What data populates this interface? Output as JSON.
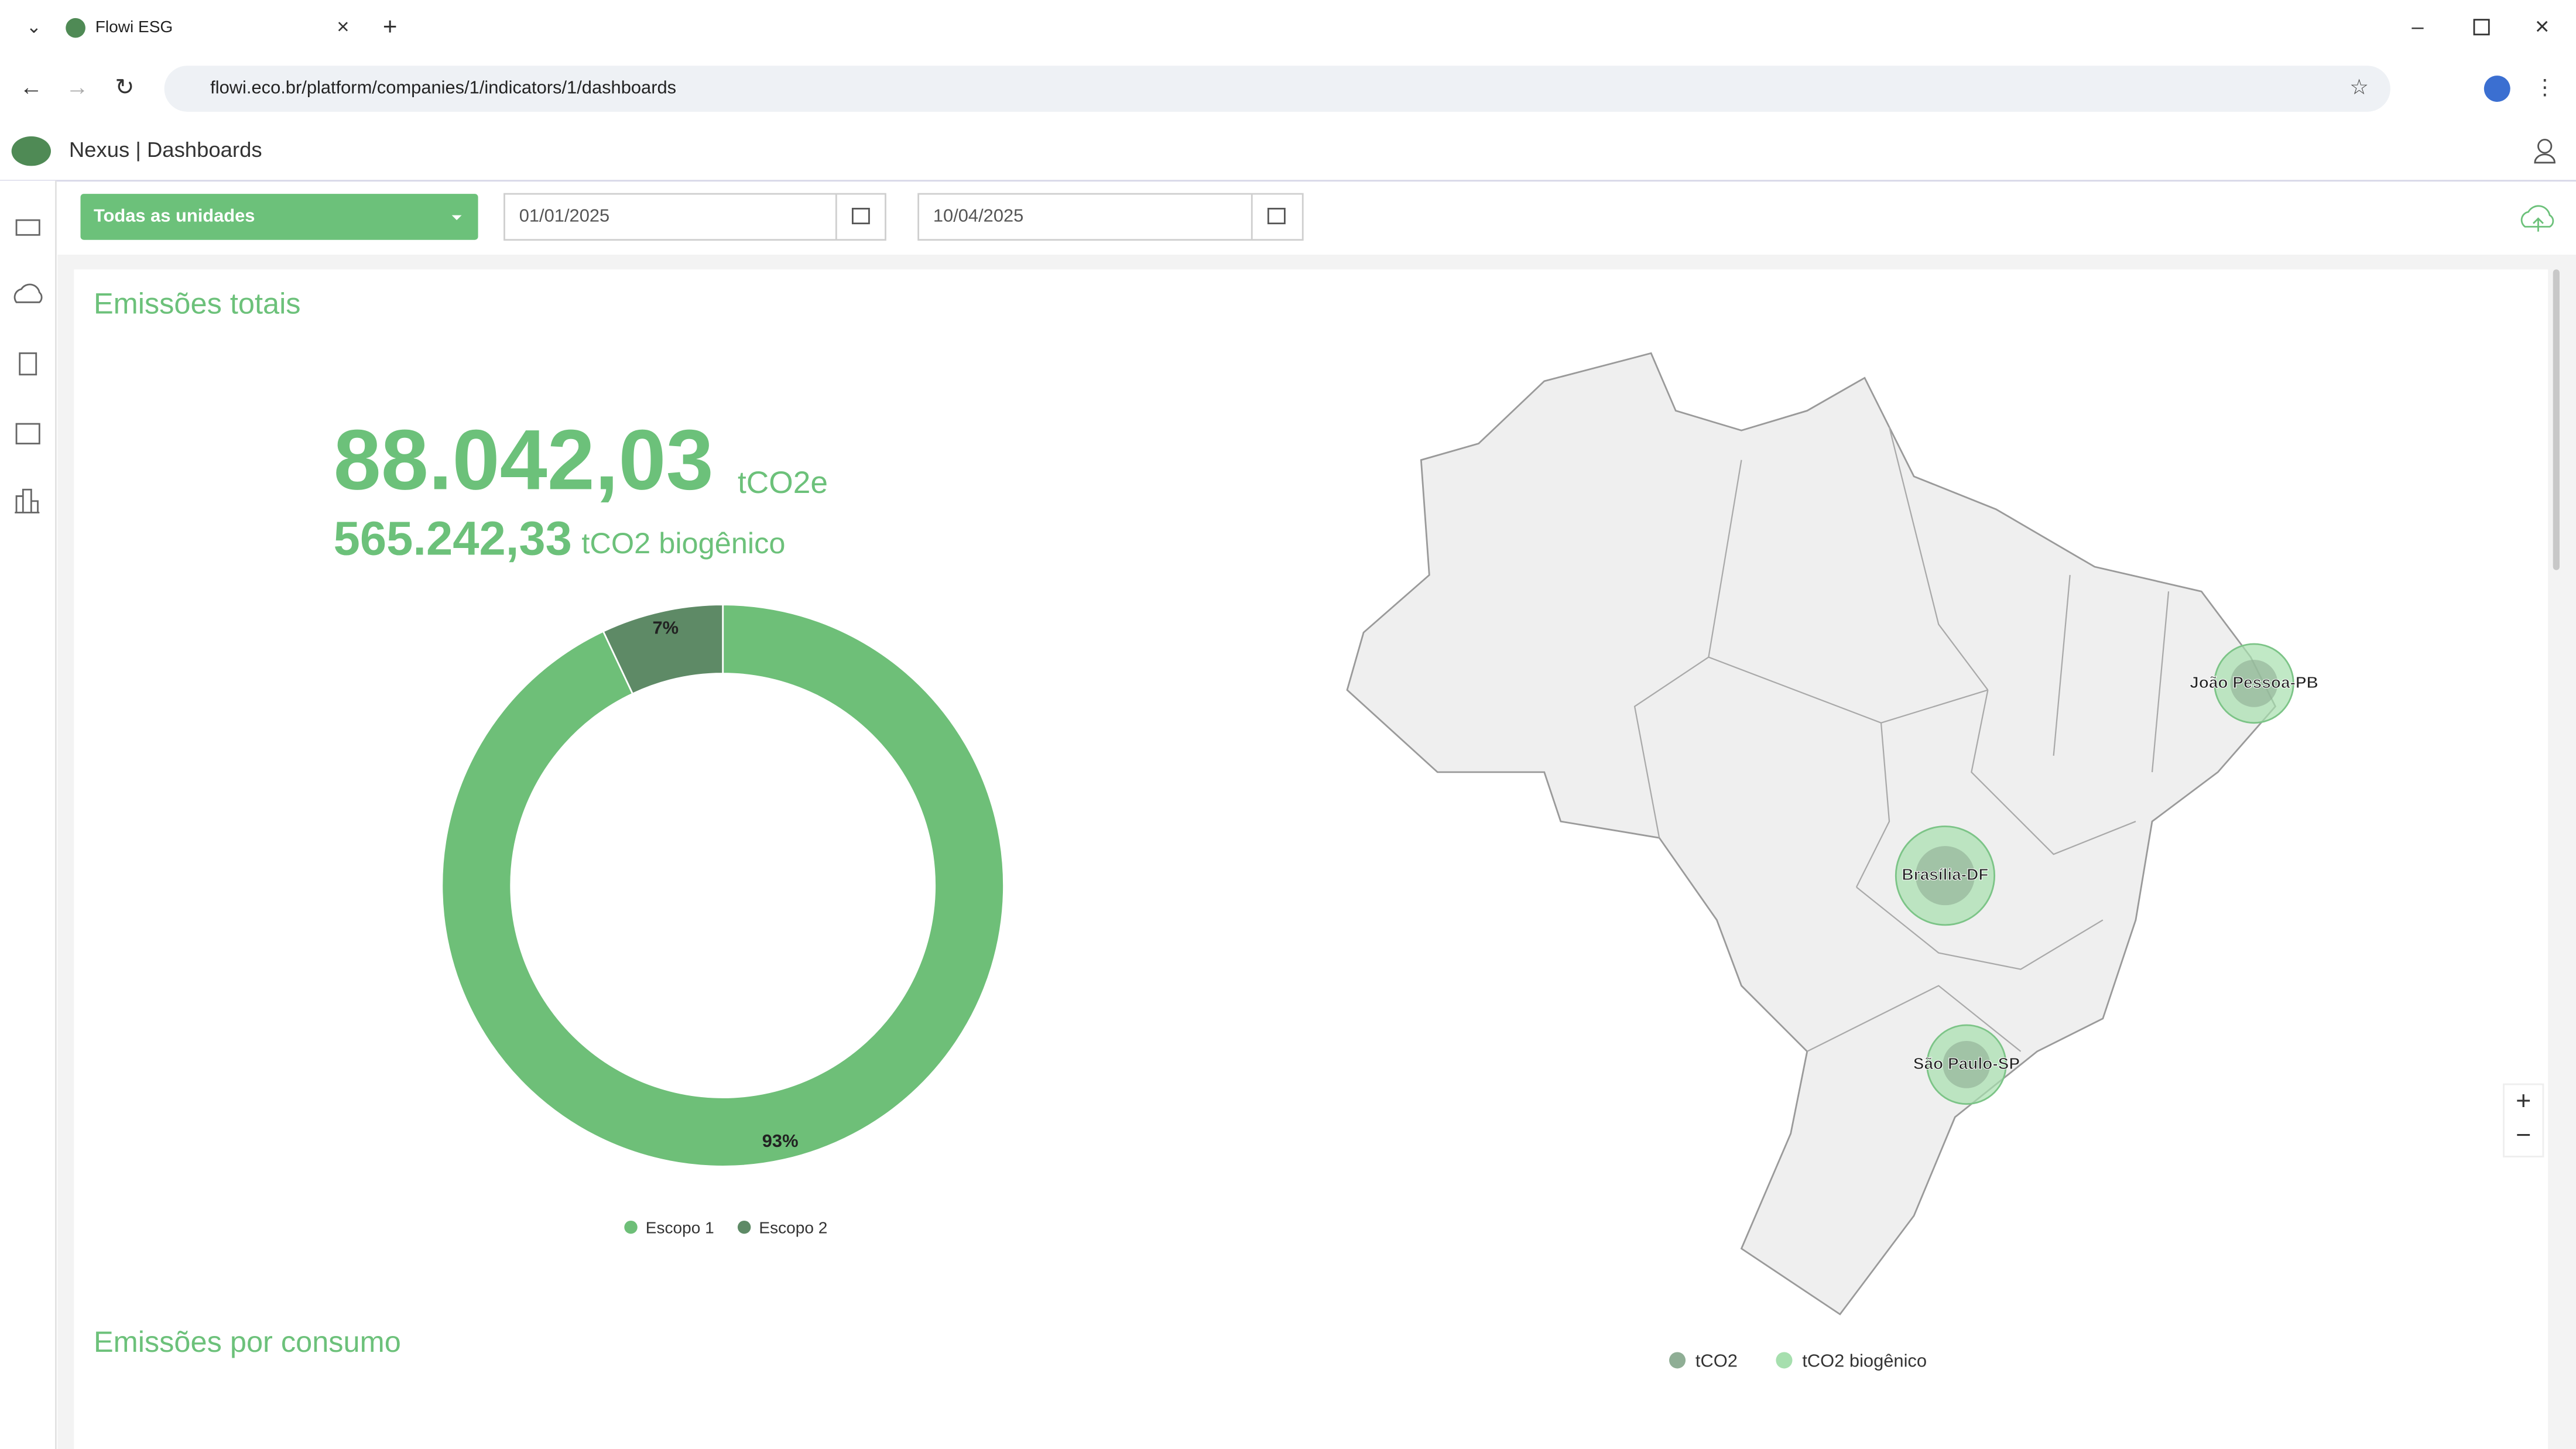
{
  "browser": {
    "tab_title": "Flowi ESG",
    "url": "flowi.eco.br/platform/companies/1/indicators/1/dashboards"
  },
  "header": {
    "title": "Nexus | Dashboards"
  },
  "filters": {
    "unit": "Todas as unidades",
    "start_date": "01/01/2025",
    "end_date": "10/04/2025"
  },
  "totals": {
    "title": "Emissões totais",
    "total": "88.042,03",
    "total_unit": "tCO2e",
    "biogenic": "565.242,33",
    "biogenic_unit": "tCO2 biogênico"
  },
  "chart_data": {
    "type": "pie",
    "categories": [
      "Escopo 1",
      "Escopo 2"
    ],
    "values": [
      93,
      7
    ],
    "value_labels": [
      "93%",
      "7%"
    ],
    "colors": [
      "#6ebf78",
      "#5e8a66"
    ],
    "donut": true
  },
  "map": {
    "cities": [
      "João Pessoa-PB",
      "Brasília-DF",
      "São Paulo-SP"
    ],
    "legend": [
      "tCO2",
      "tCO2 biogênico"
    ],
    "legend_colors": [
      "#8fae95",
      "#a6dfae"
    ]
  },
  "consumption": {
    "title": "Emissões por consumo"
  }
}
